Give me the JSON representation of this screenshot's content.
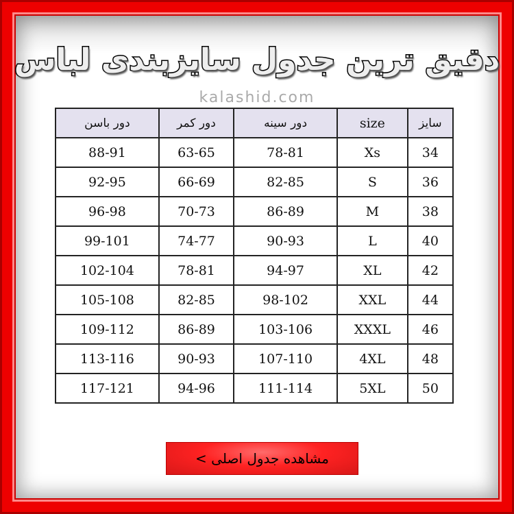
{
  "title": "دقیق ترین جدول سایزبندی لباس",
  "website": "kalashid.com",
  "table": {
    "headers": [
      "سایز",
      "size",
      "دور سینه",
      "دور کمر",
      "دور باسن"
    ],
    "rows": [
      [
        "34",
        "Xs",
        "78-81",
        "63-65",
        "88-91"
      ],
      [
        "36",
        "S",
        "82-85",
        "66-69",
        "92-95"
      ],
      [
        "38",
        "M",
        "86-89",
        "70-73",
        "96-98"
      ],
      [
        "40",
        "L",
        "90-93",
        "74-77",
        "99-101"
      ],
      [
        "42",
        "XL",
        "94-97",
        "78-81",
        "102-104"
      ],
      [
        "44",
        "XXL",
        "98-102",
        "82-85",
        "105-108"
      ],
      [
        "46",
        "XXXL",
        "103-106",
        "86-89",
        "109-112"
      ],
      [
        "48",
        "4XL",
        "107-110",
        "90-93",
        "113-116"
      ],
      [
        "50",
        "5XL",
        "111-114",
        "94-96",
        "117-121"
      ]
    ]
  },
  "button": {
    "label": "مشاهده جدول اصلی >"
  },
  "colors": {
    "frame": "#ee0000",
    "header_bg": "#e4e1ef",
    "button": "#ff2222"
  }
}
